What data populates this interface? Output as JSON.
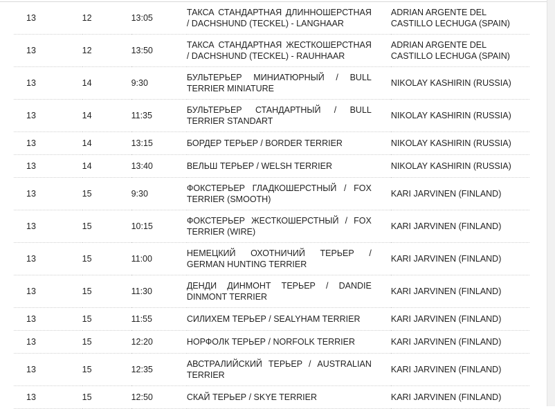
{
  "rows": [
    {
      "c1": "13",
      "c2": "12",
      "c3": "13:05",
      "breed": "ТАКСА СТАНДАРТНАЯ ДЛИННОШЕРСТНАЯ / DACHSHUND (TECKEL) - LANGHAAR",
      "judge": "ADRIAN ARGENTE DEL CASTILLO LECHUGA (SPAIN)"
    },
    {
      "c1": "13",
      "c2": "12",
      "c3": "13:50",
      "breed": "ТАКСА СТАНДАРТНАЯ ЖЕСТКОШЕРСТНАЯ / DACHSHUND (TECKEL) - RAUHHAAR",
      "judge": "ADRIAN ARGENTE DEL CASTILLO LECHUGA (SPAIN)"
    },
    {
      "c1": "13",
      "c2": "14",
      "c3": "9:30",
      "breed": "БУЛЬТЕРЬЕР МИНИАТЮРНЫЙ / BULL TERRIER MINIATURE",
      "judge": "NIKOLAY KASHIRIN (RUSSIA)"
    },
    {
      "c1": "13",
      "c2": "14",
      "c3": "11:35",
      "breed": "БУЛЬТЕРЬЕР СТАНДАРТНЫЙ / BULL TERRIER STANDART",
      "judge": "NIKOLAY KASHIRIN (RUSSIA)"
    },
    {
      "c1": "13",
      "c2": "14",
      "c3": "13:15",
      "breed": "БОРДЕР ТЕРЬЕР / BORDER TERRIER",
      "judge": "NIKOLAY KASHIRIN (RUSSIA)"
    },
    {
      "c1": "13",
      "c2": "14",
      "c3": "13:40",
      "breed": "ВЕЛЬШ ТЕРЬЕР / WELSH TERRIER",
      "judge": "NIKOLAY KASHIRIN (RUSSIA)"
    },
    {
      "c1": "13",
      "c2": "15",
      "c3": "9:30",
      "breed": "ФОКСТЕРЬЕР ГЛАДКОШЕРСТНЫЙ / FOX TERRIER (SMOOTH)",
      "judge": "KARI JARVINEN (FINLAND)"
    },
    {
      "c1": "13",
      "c2": "15",
      "c3": "10:15",
      "breed": "ФОКСТЕРЬЕР ЖЕСТКОШЕРСТНЫЙ / FOX TERRIER (WIRE)",
      "judge": "KARI JARVINEN (FINLAND)"
    },
    {
      "c1": "13",
      "c2": "15",
      "c3": "11:00",
      "breed": "НЕМЕЦКИЙ ОХОТНИЧИЙ ТЕРЬЕР / GERMAN HUNTING TERRIER",
      "judge": "KARI JARVINEN (FINLAND)"
    },
    {
      "c1": "13",
      "c2": "15",
      "c3": "11:30",
      "breed": "ДЕНДИ ДИНМОНТ ТЕРЬЕР / DANDIE DINMONT TERRIER",
      "judge": "KARI JARVINEN (FINLAND)"
    },
    {
      "c1": "13",
      "c2": "15",
      "c3": "11:55",
      "breed": "СИЛИХЕМ ТЕРЬЕР / SEALYHAM TERRIER",
      "judge": "KARI JARVINEN (FINLAND)"
    },
    {
      "c1": "13",
      "c2": "15",
      "c3": "12:20",
      "breed": "НОРФОЛК ТЕРЬЕР / NORFOLK TERRIER",
      "judge": "KARI JARVINEN (FINLAND)"
    },
    {
      "c1": "13",
      "c2": "15",
      "c3": "12:35",
      "breed": "АВСТРАЛИЙСКИЙ ТЕРЬЕР / AUSTRALIAN TERRIER",
      "judge": "KARI JARVINEN (FINLAND)"
    },
    {
      "c1": "13",
      "c2": "15",
      "c3": "12:50",
      "breed": "СКАЙ ТЕРЬЕР / SKYE TERRIER",
      "judge": "KARI JARVINEN (FINLAND)"
    }
  ]
}
